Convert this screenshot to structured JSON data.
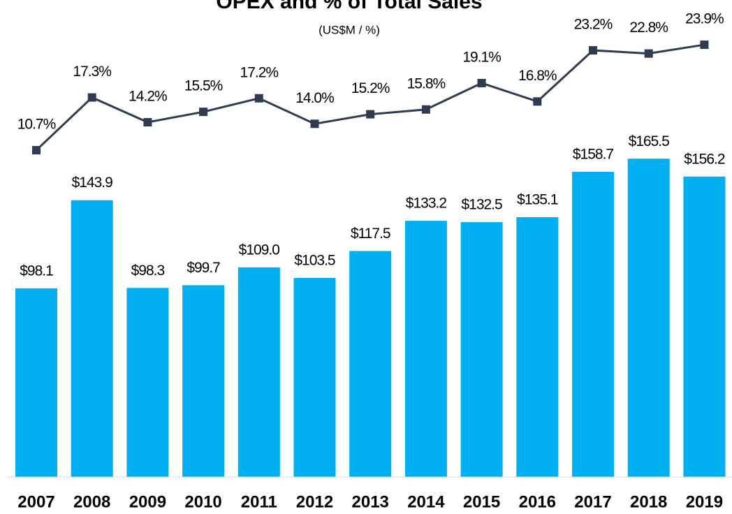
{
  "chart_data": {
    "type": "bar",
    "title": "OPEX and % of Total Sales",
    "subtitle": "(US$M / %)",
    "categories": [
      "2007",
      "2008",
      "2009",
      "2010",
      "2011",
      "2012",
      "2013",
      "2014",
      "2015",
      "2016",
      "2017",
      "2018",
      "2019"
    ],
    "series": [
      {
        "name": "OPEX",
        "type": "bar",
        "color": "#00b0f0",
        "values": [
          98.1,
          143.9,
          98.3,
          99.7,
          109.0,
          103.5,
          117.5,
          133.2,
          132.5,
          135.1,
          158.7,
          165.5,
          156.2
        ],
        "value_labels": [
          "$98.1",
          "$143.9",
          "$98.3",
          "$99.7",
          "$109.0",
          "$103.5",
          "$117.5",
          "$133.2",
          "$132.5",
          "$135.1",
          "$158.7",
          "$165.5",
          "$156.2"
        ]
      },
      {
        "name": "% of Total Sales",
        "type": "line",
        "axis": "y2",
        "color": "#2f3b50",
        "values": [
          10.7,
          17.3,
          14.2,
          15.5,
          17.2,
          14.0,
          15.2,
          15.8,
          19.1,
          16.8,
          23.2,
          22.8,
          23.9
        ],
        "value_labels": [
          "10.7%",
          "17.3%",
          "14.2%",
          "15.5%",
          "17.2%",
          "14.0%",
          "15.2%",
          "15.8%",
          "19.1%",
          "16.8%",
          "23.2%",
          "22.8%",
          "23.9%"
        ]
      }
    ],
    "ylim": [
      0,
      248
    ],
    "y2lim": [
      -30.2,
      29.5
    ]
  }
}
